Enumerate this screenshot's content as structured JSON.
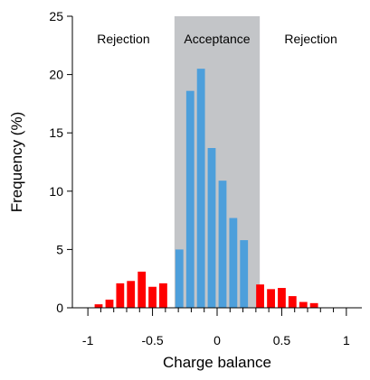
{
  "colors": {
    "rejection_bar": "#ff0000",
    "acceptance_bar": "#4d9fdb",
    "acceptance_region": "#c3c5c8",
    "axis": "#000000"
  },
  "chart_data": {
    "type": "bar",
    "xlabel": "Charge balance",
    "ylabel": "Frequency (%)",
    "xlim": [
      -1.12,
      1.12
    ],
    "ylim": [
      0,
      25
    ],
    "x_ticks": [
      -1,
      -0.5,
      0,
      0.5,
      1
    ],
    "x_tick_labels": [
      "-1",
      "-0.5",
      "0",
      "0.5",
      "1"
    ],
    "x_minor_ticks": [
      -0.9,
      -0.8,
      -0.7,
      -0.6,
      -0.4,
      -0.3,
      -0.2,
      -0.1,
      0.1,
      0.2,
      0.3,
      0.4,
      0.6,
      0.7,
      0.8,
      0.9
    ],
    "y_ticks": [
      0,
      5,
      10,
      15,
      20,
      25
    ],
    "y_tick_labels": [
      "0",
      "5",
      "10",
      "15",
      "20",
      "25"
    ],
    "bin_width": 0.0833,
    "regions": [
      {
        "label": "Rejection",
        "type": "rejection",
        "range": [
          -1.12,
          -0.33
        ]
      },
      {
        "label": "Acceptance",
        "type": "acceptance",
        "range": [
          -0.33,
          0.33
        ]
      },
      {
        "label": "Rejection",
        "type": "rejection",
        "range": [
          0.33,
          1.12
        ]
      }
    ],
    "series": [
      {
        "bins": [
          {
            "x": -0.917,
            "value": 0.3,
            "group": "rejection"
          },
          {
            "x": -0.833,
            "value": 0.7,
            "group": "rejection"
          },
          {
            "x": -0.75,
            "value": 2.1,
            "group": "rejection"
          },
          {
            "x": -0.667,
            "value": 2.3,
            "group": "rejection"
          },
          {
            "x": -0.583,
            "value": 3.1,
            "group": "rejection"
          },
          {
            "x": -0.5,
            "value": 1.8,
            "group": "rejection"
          },
          {
            "x": -0.417,
            "value": 2.1,
            "group": "rejection"
          },
          {
            "x": -0.292,
            "value": 5.0,
            "group": "acceptance"
          },
          {
            "x": -0.208,
            "value": 18.6,
            "group": "acceptance"
          },
          {
            "x": -0.125,
            "value": 20.5,
            "group": "acceptance"
          },
          {
            "x": -0.042,
            "value": 13.7,
            "group": "acceptance"
          },
          {
            "x": 0.042,
            "value": 10.9,
            "group": "acceptance"
          },
          {
            "x": 0.125,
            "value": 7.7,
            "group": "acceptance"
          },
          {
            "x": 0.208,
            "value": 5.8,
            "group": "acceptance"
          },
          {
            "x": 0.333,
            "value": 2.0,
            "group": "rejection"
          },
          {
            "x": 0.417,
            "value": 1.6,
            "group": "rejection"
          },
          {
            "x": 0.5,
            "value": 1.7,
            "group": "rejection"
          },
          {
            "x": 0.583,
            "value": 1.0,
            "group": "rejection"
          },
          {
            "x": 0.667,
            "value": 0.5,
            "group": "rejection"
          },
          {
            "x": 0.75,
            "value": 0.4,
            "group": "rejection"
          }
        ]
      }
    ]
  }
}
